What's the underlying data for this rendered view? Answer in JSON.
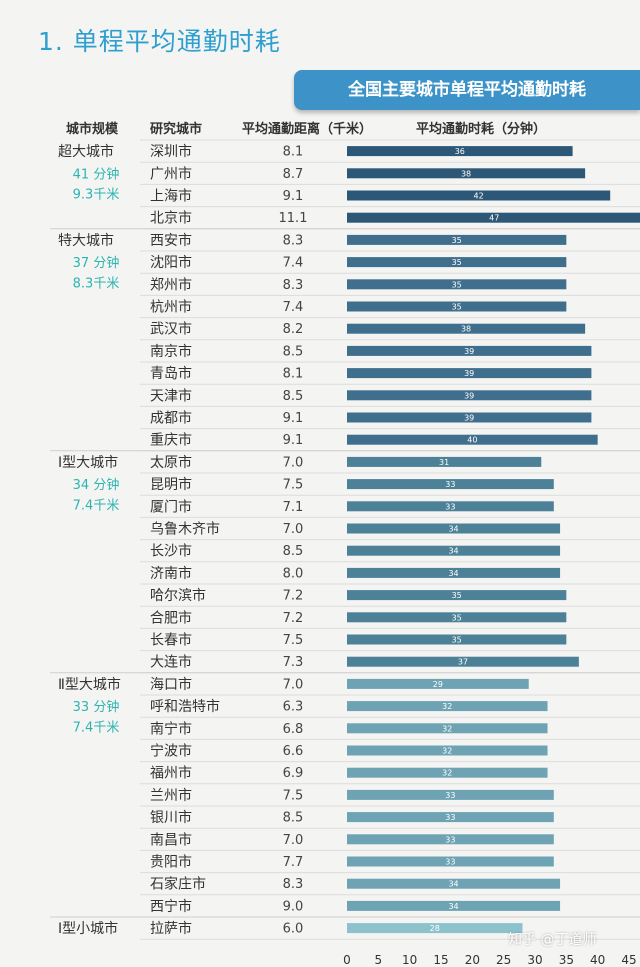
{
  "section_title": "1. 单程平均通勤时耗",
  "banner": "全国主要城市单程平均通勤时耗",
  "headers": {
    "scale": "城市规模",
    "city": "研究城市",
    "distance": "平均通勤距离（千米）",
    "time": "平均通勤时耗（分钟）"
  },
  "groups": [
    {
      "name": "超大城市",
      "time": "41 分钟",
      "dist": "9.3千米"
    },
    {
      "name": "特大城市",
      "time": "37 分钟",
      "dist": "8.3千米"
    },
    {
      "name": "Ⅰ型大城市",
      "time": "34 分钟",
      "dist": "7.4千米"
    },
    {
      "name": "Ⅱ型大城市",
      "time": "33 分钟",
      "dist": "7.4千米"
    },
    {
      "name": "Ⅰ型小城市"
    }
  ],
  "chart_data": {
    "type": "bar",
    "orientation": "horizontal",
    "title": "全国主要城市单程平均通勤时耗",
    "xlim": [
      0,
      45
    ],
    "xticks": [
      0,
      5,
      10,
      15,
      20,
      25,
      30,
      35,
      40,
      45
    ],
    "rows": [
      {
        "city": "深圳市",
        "distance": "8.1",
        "time": 36,
        "group": 0
      },
      {
        "city": "广州市",
        "distance": "8.7",
        "time": 38,
        "group": 0
      },
      {
        "city": "上海市",
        "distance": "9.1",
        "time": 42,
        "group": 0
      },
      {
        "city": "北京市",
        "distance": "11.1",
        "time": 47,
        "group": 0
      },
      {
        "city": "西安市",
        "distance": "8.3",
        "time": 35,
        "group": 1
      },
      {
        "city": "沈阳市",
        "distance": "7.4",
        "time": 35,
        "group": 1
      },
      {
        "city": "郑州市",
        "distance": "8.3",
        "time": 35,
        "group": 1
      },
      {
        "city": "杭州市",
        "distance": "7.4",
        "time": 35,
        "group": 1
      },
      {
        "city": "武汉市",
        "distance": "8.2",
        "time": 38,
        "group": 1
      },
      {
        "city": "南京市",
        "distance": "8.5",
        "time": 39,
        "group": 1
      },
      {
        "city": "青岛市",
        "distance": "8.1",
        "time": 39,
        "group": 1
      },
      {
        "city": "天津市",
        "distance": "8.5",
        "time": 39,
        "group": 1
      },
      {
        "city": "成都市",
        "distance": "9.1",
        "time": 39,
        "group": 1
      },
      {
        "city": "重庆市",
        "distance": "9.1",
        "time": 40,
        "group": 1
      },
      {
        "city": "太原市",
        "distance": "7.0",
        "time": 31,
        "group": 2
      },
      {
        "city": "昆明市",
        "distance": "7.5",
        "time": 33,
        "group": 2
      },
      {
        "city": "厦门市",
        "distance": "7.1",
        "time": 33,
        "group": 2
      },
      {
        "city": "乌鲁木齐市",
        "distance": "7.0",
        "time": 34,
        "group": 2
      },
      {
        "city": "长沙市",
        "distance": "8.5",
        "time": 34,
        "group": 2
      },
      {
        "city": "济南市",
        "distance": "8.0",
        "time": 34,
        "group": 2
      },
      {
        "city": "哈尔滨市",
        "distance": "7.2",
        "time": 35,
        "group": 2
      },
      {
        "city": "合肥市",
        "distance": "7.2",
        "time": 35,
        "group": 2
      },
      {
        "city": "长春市",
        "distance": "7.5",
        "time": 35,
        "group": 2
      },
      {
        "city": "大连市",
        "distance": "7.3",
        "time": 37,
        "group": 2
      },
      {
        "city": "海口市",
        "distance": "7.0",
        "time": 29,
        "group": 3
      },
      {
        "city": "呼和浩特市",
        "distance": "6.3",
        "time": 32,
        "group": 3
      },
      {
        "city": "南宁市",
        "distance": "6.8",
        "time": 32,
        "group": 3
      },
      {
        "city": "宁波市",
        "distance": "6.6",
        "time": 32,
        "group": 3
      },
      {
        "city": "福州市",
        "distance": "6.9",
        "time": 32,
        "group": 3
      },
      {
        "city": "兰州市",
        "distance": "7.5",
        "time": 33,
        "group": 3
      },
      {
        "city": "银川市",
        "distance": "8.5",
        "time": 33,
        "group": 3
      },
      {
        "city": "南昌市",
        "distance": "7.0",
        "time": 33,
        "group": 3
      },
      {
        "city": "贵阳市",
        "distance": "7.7",
        "time": 33,
        "group": 3
      },
      {
        "city": "石家庄市",
        "distance": "8.3",
        "time": 34,
        "group": 3
      },
      {
        "city": "西宁市",
        "distance": "9.0",
        "time": 34,
        "group": 3
      },
      {
        "city": "拉萨市",
        "distance": "6.0",
        "time": 28,
        "group": 4
      }
    ]
  },
  "colors": {
    "title": "#2e9fd0",
    "banner": "#3d93c7",
    "group_sub": "#2cb5b0",
    "bars_by_group": [
      "#2d5776",
      "#3f6f8d",
      "#4c8198",
      "#6ea3b4",
      "#8cc2cc"
    ]
  },
  "watermark": "知乎 @丁道师"
}
